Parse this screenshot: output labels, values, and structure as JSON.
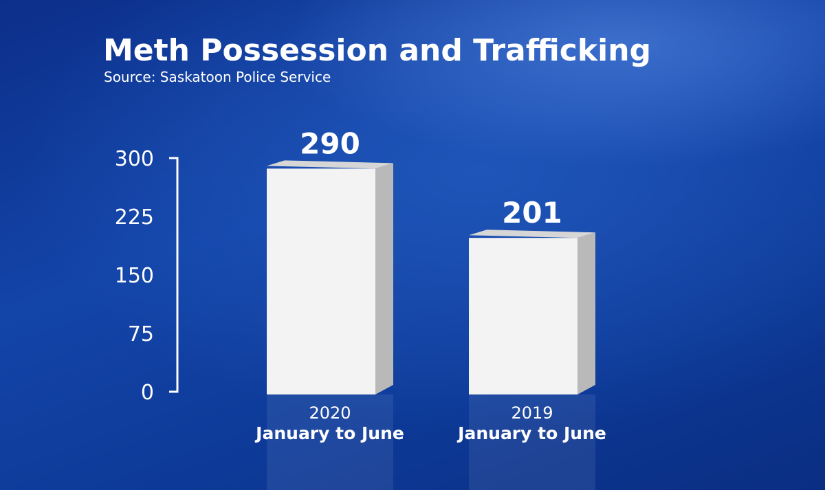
{
  "chart_data": {
    "type": "bar",
    "title": "Meth Possession and Trafficking",
    "subtitle": "Source: Saskatoon Police Service",
    "categories": [
      {
        "year": "2020",
        "range": "January to June"
      },
      {
        "year": "2019",
        "range": "January to June"
      }
    ],
    "values": [
      290,
      201
    ],
    "data_labels": [
      "290",
      "201"
    ],
    "ylim": [
      0,
      300
    ],
    "yticks": [
      "300",
      "225",
      "150",
      "75",
      "0"
    ],
    "ytick_values": [
      300,
      225,
      150,
      75,
      0
    ],
    "grid": false,
    "legend": "none"
  },
  "colors": {
    "background": "#1344a8",
    "bar_front": "#f3f3f3",
    "bar_side": "#b9b9b9",
    "bar_top": "#d6d6d6",
    "text": "#ffffff"
  }
}
